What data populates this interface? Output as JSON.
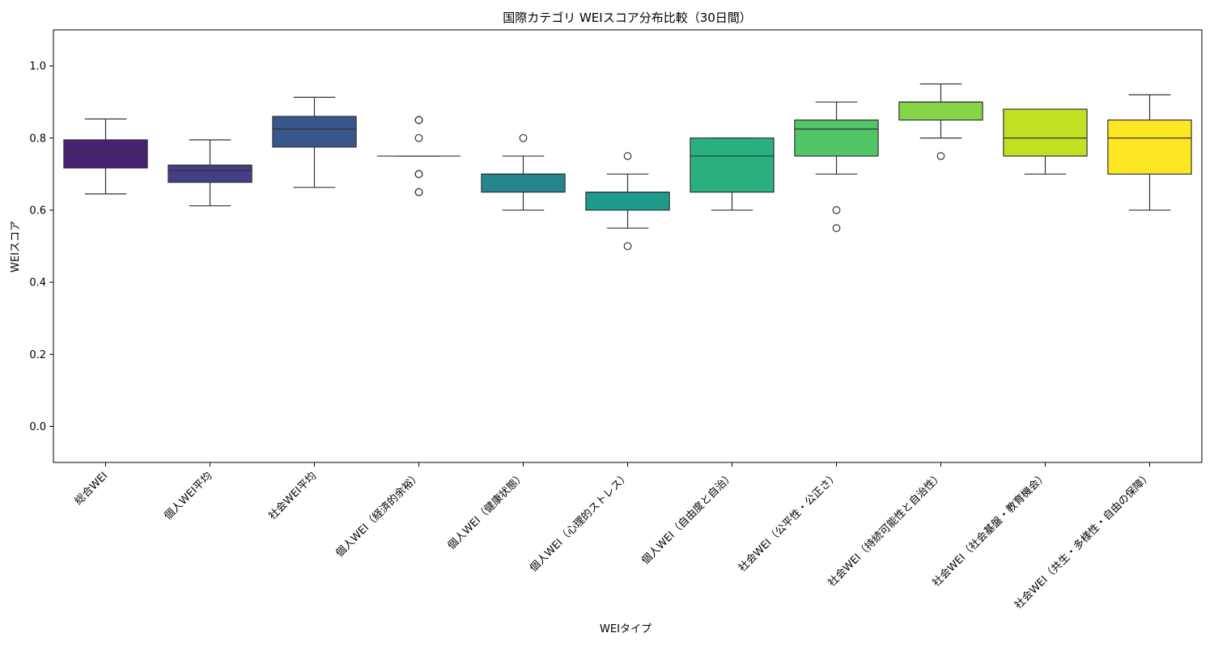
{
  "chart_data": {
    "type": "box",
    "title": "国際カテゴリ WEIスコア分布比較（30日間）",
    "xlabel": "WEIタイプ",
    "ylabel": "WEIスコア",
    "ylim": [
      -0.1,
      1.1
    ],
    "yticks": [
      0.0,
      0.2,
      0.4,
      0.6,
      0.8,
      1.0
    ],
    "ytick_labels": [
      "0.0",
      "0.2",
      "0.4",
      "0.6",
      "0.8",
      "1.0"
    ],
    "grid": false,
    "legend": "none",
    "categories": [
      "総合WEI",
      "個人WEI平均",
      "社会WEI平均",
      "個人WEI（経済的余裕）",
      "個人WEI（健康状態）",
      "個人WEI（心理的ストレス）",
      "個人WEI（自由度と自治）",
      "社会WEI（公平性・公正さ）",
      "社会WEI（持続可能性と自治性）",
      "社会WEI（社会基盤・教育機会）",
      "社会WEI（共生・多様性・自由の保障）"
    ],
    "colors": [
      "#482173",
      "#433e85",
      "#38588c",
      "#2d708e",
      "#25858e",
      "#1e9b8a",
      "#2ab07f",
      "#52c569",
      "#86d549",
      "#c2df23",
      "#fde725"
    ],
    "boxes": [
      {
        "q1": 0.717,
        "median": 0.765,
        "q3": 0.795,
        "whisker_low": 0.645,
        "whisker_high": 0.853,
        "outliers": []
      },
      {
        "q1": 0.677,
        "median": 0.71,
        "q3": 0.725,
        "whisker_low": 0.612,
        "whisker_high": 0.795,
        "outliers": []
      },
      {
        "q1": 0.775,
        "median": 0.825,
        "q3": 0.86,
        "whisker_low": 0.663,
        "whisker_high": 0.913,
        "outliers": []
      },
      {
        "q1": 0.75,
        "median": 0.75,
        "q3": 0.75,
        "whisker_low": 0.75,
        "whisker_high": 0.75,
        "outliers": [
          0.85,
          0.85,
          0.8,
          0.7,
          0.7,
          0.65,
          0.65
        ]
      },
      {
        "q1": 0.65,
        "median": 0.7,
        "q3": 0.7,
        "whisker_low": 0.6,
        "whisker_high": 0.75,
        "outliers": [
          0.8
        ]
      },
      {
        "q1": 0.6,
        "median": 0.65,
        "q3": 0.65,
        "whisker_low": 0.55,
        "whisker_high": 0.7,
        "outliers": [
          0.75,
          0.5
        ]
      },
      {
        "q1": 0.65,
        "median": 0.75,
        "q3": 0.8,
        "whisker_low": 0.6,
        "whisker_high": 0.8,
        "outliers": []
      },
      {
        "q1": 0.75,
        "median": 0.825,
        "q3": 0.85,
        "whisker_low": 0.7,
        "whisker_high": 0.9,
        "outliers": [
          0.6,
          0.55
        ]
      },
      {
        "q1": 0.85,
        "median": 0.9,
        "q3": 0.9,
        "whisker_low": 0.8,
        "whisker_high": 0.95,
        "outliers": [
          0.75
        ]
      },
      {
        "q1": 0.75,
        "median": 0.8,
        "q3": 0.88,
        "whisker_low": 0.7,
        "whisker_high": 0.88,
        "outliers": []
      },
      {
        "q1": 0.7,
        "median": 0.8,
        "q3": 0.85,
        "whisker_low": 0.6,
        "whisker_high": 0.92,
        "outliers": []
      }
    ]
  }
}
